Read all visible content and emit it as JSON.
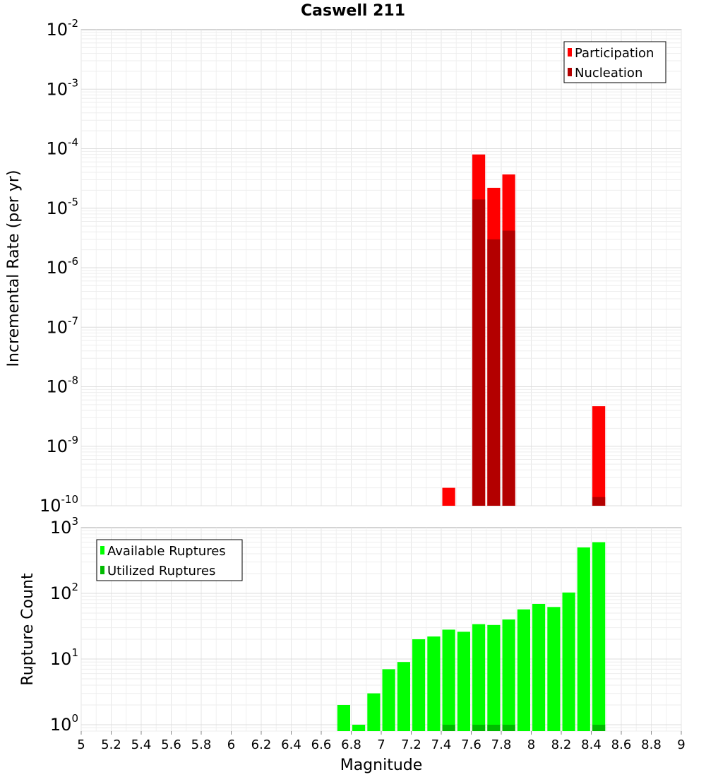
{
  "page": {
    "title": "Caswell 211",
    "xlabel": "Magnitude"
  },
  "chart_data": [
    {
      "type": "bar",
      "scale": "log",
      "ylabel": "Incremental Rate (per yr)",
      "ylim": [
        1e-10,
        0.01
      ],
      "y_ticks": [
        {
          "base": "10",
          "exp": "-2"
        },
        {
          "base": "10",
          "exp": "-3"
        },
        {
          "base": "10",
          "exp": "-4"
        },
        {
          "base": "10",
          "exp": "-5"
        },
        {
          "base": "10",
          "exp": "-6"
        },
        {
          "base": "10",
          "exp": "-7"
        },
        {
          "base": "10",
          "exp": "-8"
        },
        {
          "base": "10",
          "exp": "-9"
        },
        {
          "base": "10",
          "exp": "-10"
        }
      ],
      "legend": "top-right",
      "series": [
        {
          "name": "Participation",
          "color": "#ff0000",
          "x": [
            7.45,
            7.65,
            7.75,
            7.85,
            8.45
          ],
          "values": [
            2e-10,
            8e-05,
            2.2e-05,
            3.7e-05,
            4.7e-09
          ]
        },
        {
          "name": "Nucleation",
          "color": "#b30000",
          "x": [
            7.65,
            7.75,
            7.85,
            8.45
          ],
          "values": [
            1.4e-05,
            3e-06,
            4.2e-06,
            1.4e-10
          ]
        }
      ]
    },
    {
      "type": "bar",
      "scale": "log",
      "ylabel": "Rupture Count",
      "ylim": [
        0.8,
        1000
      ],
      "y_ticks": [
        {
          "base": "10",
          "exp": "3"
        },
        {
          "base": "10",
          "exp": "2"
        },
        {
          "base": "10",
          "exp": "1"
        },
        {
          "base": "10",
          "exp": "0"
        }
      ],
      "legend": "top-left",
      "series": [
        {
          "name": "Available Ruptures",
          "color": "#00ff00",
          "x": [
            6.75,
            6.85,
            6.95,
            7.05,
            7.15,
            7.25,
            7.35,
            7.45,
            7.55,
            7.65,
            7.75,
            7.85,
            7.95,
            8.05,
            8.15,
            8.25,
            8.35,
            8.45
          ],
          "values": [
            2,
            1,
            3,
            7,
            9,
            20,
            22,
            28,
            26,
            34,
            33,
            40,
            57,
            69,
            62,
            103,
            500,
            600
          ]
        },
        {
          "name": "Utilized Ruptures",
          "color": "#00bb00",
          "x": [
            7.45,
            7.65,
            7.75,
            7.85,
            8.45
          ],
          "values": [
            1,
            1,
            1,
            1,
            1
          ]
        }
      ]
    }
  ],
  "x_axis": {
    "xlim": [
      5,
      9
    ],
    "ticks": [
      "5",
      "5.2",
      "5.4",
      "5.6",
      "5.8",
      "6",
      "6.2",
      "6.4",
      "6.6",
      "6.8",
      "7",
      "7.2",
      "7.4",
      "7.6",
      "7.8",
      "8",
      "8.2",
      "8.4",
      "8.6",
      "8.8",
      "9"
    ]
  }
}
